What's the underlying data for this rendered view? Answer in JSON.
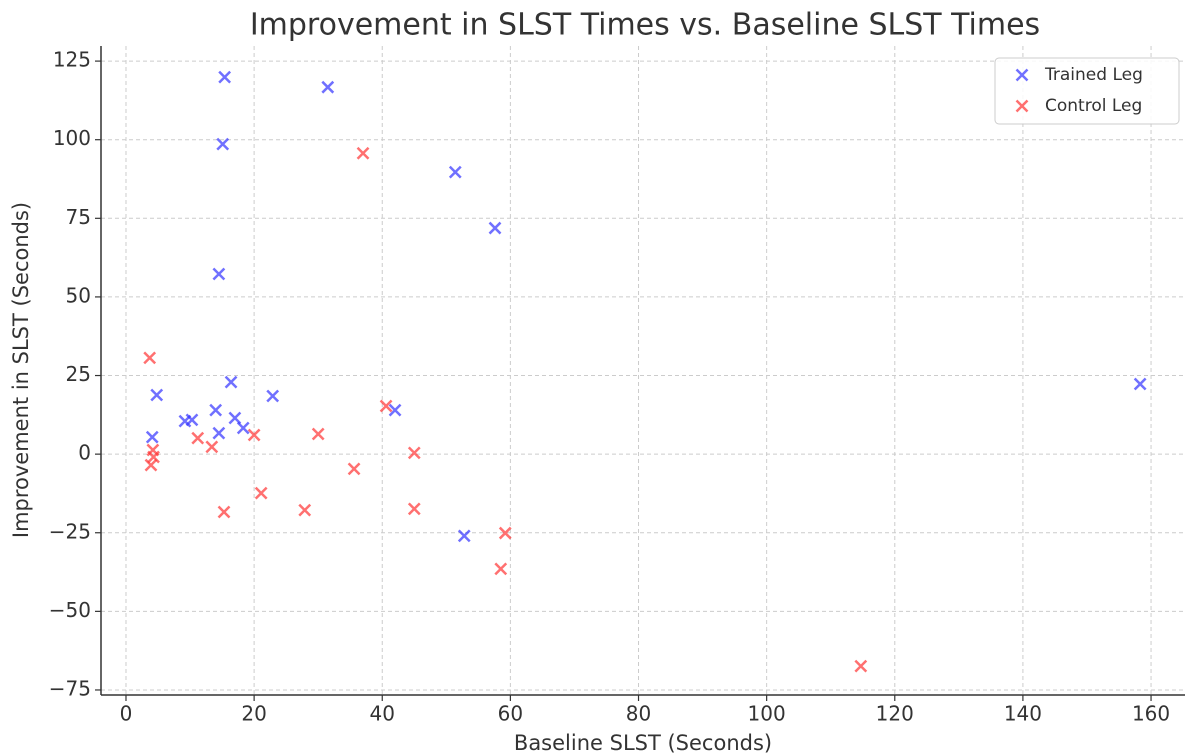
{
  "chart_data": {
    "type": "scatter",
    "title": "Improvement in SLST Times vs. Baseline SLST Times",
    "x_label": "Baseline SLST (Seconds)",
    "y_label": "Improvement in SLST (Seconds)",
    "xlim": [
      -3.9,
      165.3
    ],
    "ylim": [
      -76.6,
      129.8
    ],
    "xticks": [
      0,
      20,
      40,
      60,
      80,
      100,
      120,
      140,
      160
    ],
    "yticks": [
      {
        "value": -75,
        "label": "−75"
      },
      {
        "value": -50,
        "label": "−50"
      },
      {
        "value": -25,
        "label": "−25"
      },
      0,
      25,
      50,
      75,
      100,
      125
    ],
    "grid": true,
    "legend": "upper right",
    "series": [
      {
        "name": "Trained Leg",
        "color": "#3333ff",
        "x": [
          15.4,
          31.5,
          15.1,
          51.4,
          57.6,
          14.5,
          158.3,
          4.8,
          16.4,
          22.9,
          14.0,
          42.0,
          17.0,
          9.2,
          10.3,
          18.3,
          14.5,
          4.1,
          52.8
        ],
        "values": [
          119.9,
          116.7,
          98.6,
          89.7,
          71.9,
          57.3,
          22.3,
          18.8,
          22.9,
          18.5,
          14.0,
          14.0,
          11.5,
          10.5,
          10.9,
          8.3,
          6.7,
          5.4,
          -26.0
        ]
      },
      {
        "name": "Control Leg",
        "color": "#ff3333",
        "x": [
          37.0,
          3.7,
          40.6,
          11.2,
          20.0,
          30.0,
          13.4,
          4.2,
          4.3,
          3.9,
          45.0,
          35.6,
          21.1,
          15.3,
          27.9,
          45.0,
          59.2,
          58.5,
          114.7
        ],
        "values": [
          95.7,
          30.6,
          15.3,
          5.1,
          6.1,
          6.4,
          2.3,
          1.3,
          -0.9,
          -3.5,
          0.4,
          -4.7,
          -12.4,
          -18.4,
          -17.8,
          -17.4,
          -25.1,
          -36.5,
          -67.4
        ]
      }
    ]
  }
}
